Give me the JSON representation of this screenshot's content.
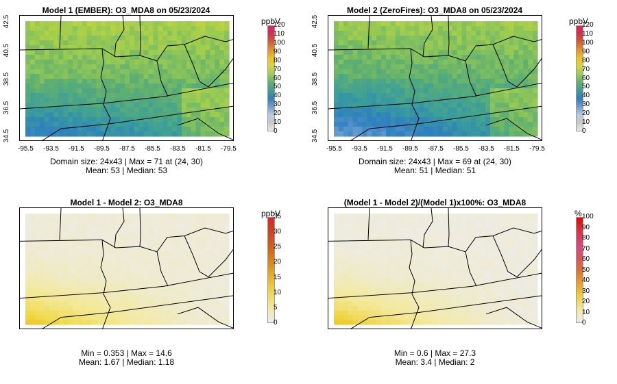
{
  "panels": [
    {
      "title": "Model 1 (EMBER): O3_MDA8 on 05/23/2024",
      "stats_line1": "Domain size: 24x43 | Max = 71 at (24, 30)",
      "stats_line2": "Mean: 53 |  Median: 53",
      "x_ticks": [
        "-95.5",
        "-93.5",
        "-91.5",
        "-89.5",
        "-87.5",
        "-85.5",
        "-83.5",
        "-81.5",
        "-79.5"
      ],
      "y_ticks": [
        "42.5",
        "40.5",
        "38.5",
        "36.5",
        "34.5"
      ],
      "colorbar_unit": "ppbV",
      "colorbar_labels": [
        "120",
        "110",
        "100",
        "90",
        "80",
        "70",
        "60",
        "50",
        "40",
        "30",
        "20",
        "10",
        "0"
      ]
    },
    {
      "title": "Model 2 (ZeroFires): O3_MDA8 on 05/23/2024",
      "stats_line1": "Domain size: 24x43 | Max = 69 at (24, 30)",
      "stats_line2": "Mean: 51 |  Median: 51",
      "x_ticks": [
        "-95.5",
        "-93.5",
        "-91.5",
        "-89.5",
        "-87.5",
        "-85.5",
        "-83.5",
        "-81.5",
        "-79.5"
      ],
      "y_ticks": [
        "42.5",
        "40.5",
        "38.5",
        "36.5",
        "34.5"
      ],
      "colorbar_unit": "ppbV",
      "colorbar_labels": [
        "120",
        "110",
        "100",
        "90",
        "80",
        "70",
        "60",
        "50",
        "40",
        "30",
        "20",
        "10",
        "0"
      ]
    },
    {
      "title": "Model 1 - Model 2: O3_MDA8",
      "stats_line1": "Min = 0.353 | Max = 14.6",
      "stats_line2": "Mean: 1.67 |  Median: 1.18",
      "colorbar_unit": "ppbV",
      "colorbar_labels": [
        "35",
        "30",
        "25",
        "20",
        "15",
        "10",
        "5",
        "0"
      ]
    },
    {
      "title": "(Model 1 - Model 2)/(Model 1)x100%: O3_MDA8",
      "stats_line1": "Min = 0.6 | Max = 27.3",
      "stats_line2": "Mean: 3.4 |  Median: 2",
      "colorbar_unit": "%",
      "colorbar_labels": [
        "100",
        "90",
        "80",
        "70",
        "60",
        "50",
        "40",
        "30",
        "20",
        "10",
        "0"
      ]
    }
  ],
  "colors": {
    "conc_scale": [
      "#e8e8e8",
      "#c8c8c8",
      "#b8cce4",
      "#6a9fd0",
      "#2e7fc0",
      "#3a9e9a",
      "#5fb070",
      "#9ccc50",
      "#d8d830",
      "#f2c21a",
      "#e89520",
      "#d85b30",
      "#d8304a",
      "#e0205a"
    ],
    "diff_scale": [
      "#ececec",
      "#f3e99a",
      "#f0d840",
      "#f0b020",
      "#e08810",
      "#d86010",
      "#d84020",
      "#e82020"
    ],
    "pct_scale": [
      "#ececec",
      "#f3e99a",
      "#f0d030",
      "#f0a020",
      "#e07030",
      "#e05060",
      "#e04080",
      "#e03040",
      "#f00000"
    ]
  }
}
